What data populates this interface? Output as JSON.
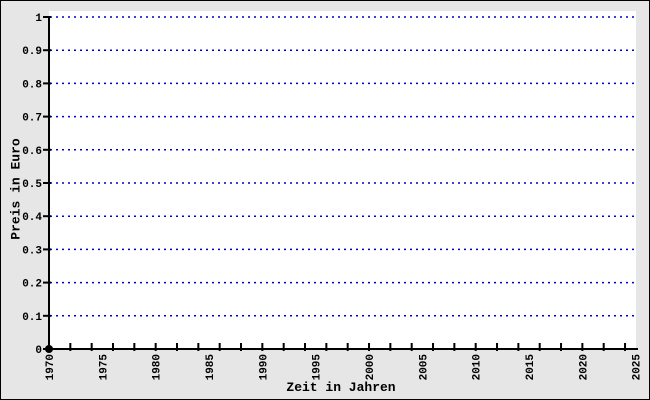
{
  "chart_data": {
    "type": "scatter",
    "title": "",
    "xlabel": "Zeit in Jahren",
    "ylabel": "Preis in Euro",
    "xlim": [
      1970,
      2025
    ],
    "ylim": [
      0,
      1
    ],
    "x_labels": [
      {
        "year": 1970,
        "label": "1970"
      },
      {
        "year": 1975,
        "label": "1975"
      },
      {
        "year": 1980,
        "label": "1980"
      },
      {
        "year": 1985,
        "label": "1985"
      },
      {
        "year": 1990,
        "label": "1990"
      },
      {
        "year": 1995,
        "label": "1995"
      },
      {
        "year": 2000,
        "label": "2000"
      },
      {
        "year": 2005,
        "label": "2005"
      },
      {
        "year": 2010,
        "label": "2010"
      },
      {
        "year": 2015,
        "label": "2015"
      },
      {
        "year": 2020,
        "label": "2020"
      },
      {
        "year": 2025,
        "label": "2025"
      }
    ],
    "x_label_rotation_deg": -90,
    "x_minor_ticks": {
      "start": 1970,
      "end": 2024,
      "step_years": 2
    },
    "y_ticks": [
      {
        "value": 0,
        "label": "0"
      },
      {
        "value": 0.1,
        "label": "0.1"
      },
      {
        "value": 0.2,
        "label": "0.2"
      },
      {
        "value": 0.3,
        "label": "0.3"
      },
      {
        "value": 0.4,
        "label": "0.4"
      },
      {
        "value": 0.5,
        "label": "0.5"
      },
      {
        "value": 0.6,
        "label": "0.6"
      },
      {
        "value": 0.7,
        "label": "0.7"
      },
      {
        "value": 0.8,
        "label": "0.8"
      },
      {
        "value": 0.9,
        "label": "0.9"
      },
      {
        "value": 1,
        "label": "1"
      }
    ],
    "gridlines": {
      "orientation": "horizontal",
      "style": "dotted",
      "values": [
        0.1,
        0.2,
        0.3,
        0.4,
        0.5,
        0.6,
        0.7,
        0.8,
        0.9,
        1.0
      ]
    },
    "series": [],
    "points": [
      {
        "x": 1970,
        "y": 0,
        "marker": "filled-circle",
        "role": "origin-marker"
      }
    ],
    "legend": null,
    "colors": {
      "grid": "#0000cc",
      "axis": "#000000",
      "text": "#000000",
      "marker": "#000000",
      "plot_background": "#ffffff",
      "outer_background": "#e6e6e6",
      "frame_border": "#000000"
    }
  }
}
